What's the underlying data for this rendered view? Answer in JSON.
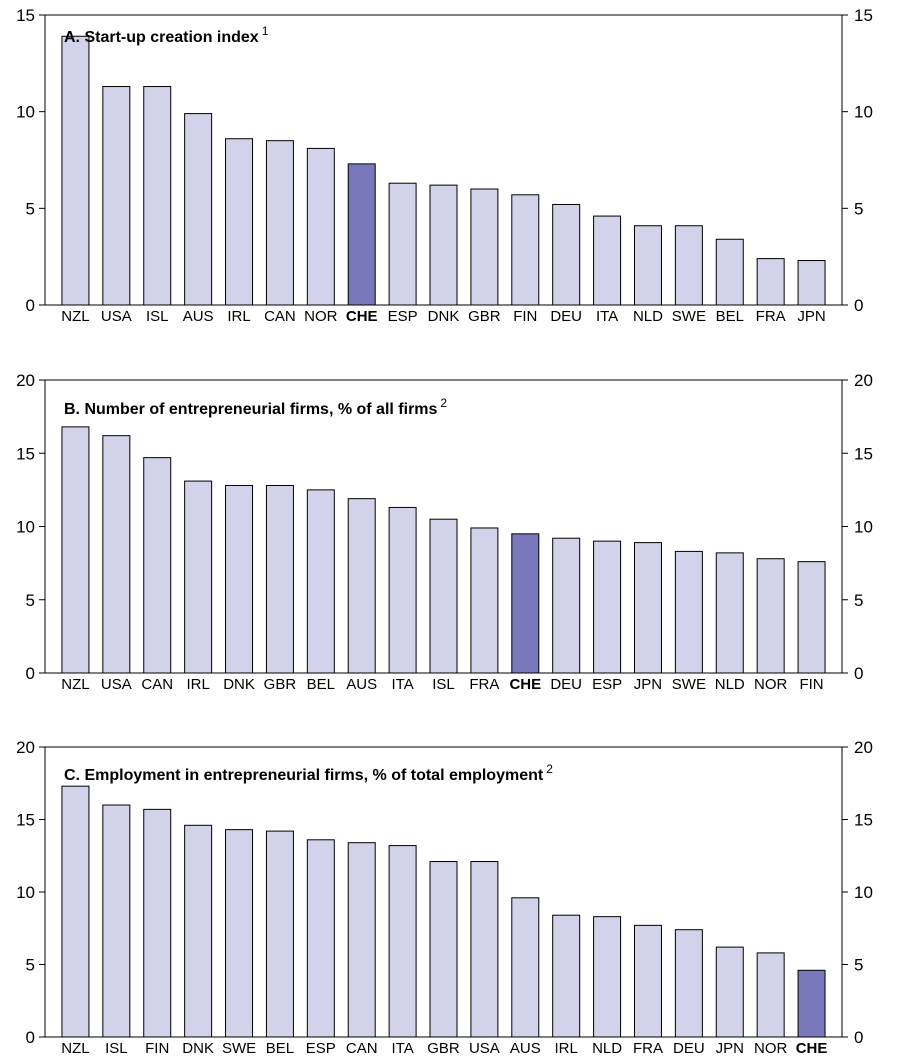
{
  "colors": {
    "bar": "#d2d2ea",
    "highlight": "#7878bb",
    "stroke": "#000000"
  },
  "chart_data": [
    {
      "type": "bar",
      "title": "A. Start-up creation index",
      "title_note": "1",
      "ylim": [
        0,
        15
      ],
      "yticks": [
        0,
        5,
        10,
        15
      ],
      "highlight": "CHE",
      "categories": [
        "NZL",
        "USA",
        "ISL",
        "AUS",
        "IRL",
        "CAN",
        "NOR",
        "CHE",
        "ESP",
        "DNK",
        "GBR",
        "FIN",
        "DEU",
        "ITA",
        "NLD",
        "SWE",
        "BEL",
        "FRA",
        "JPN"
      ],
      "values": [
        13.9,
        11.3,
        11.3,
        9.9,
        8.6,
        8.5,
        8.1,
        7.3,
        6.3,
        6.2,
        6.0,
        5.7,
        5.2,
        4.6,
        4.1,
        4.1,
        3.4,
        2.4,
        2.3
      ]
    },
    {
      "type": "bar",
      "title": "B. Number of entrepreneurial firms, % of all firms",
      "title_note": "2",
      "ylim": [
        0,
        20
      ],
      "yticks": [
        0,
        5,
        10,
        15,
        20
      ],
      "highlight": "CHE",
      "categories": [
        "NZL",
        "USA",
        "CAN",
        "IRL",
        "DNK",
        "GBR",
        "BEL",
        "AUS",
        "ITA",
        "ISL",
        "FRA",
        "CHE",
        "DEU",
        "ESP",
        "JPN",
        "SWE",
        "NLD",
        "NOR",
        "FIN"
      ],
      "values": [
        16.8,
        16.2,
        14.7,
        13.1,
        12.8,
        12.8,
        12.5,
        11.9,
        11.3,
        10.5,
        9.9,
        9.5,
        9.2,
        9.0,
        8.9,
        8.3,
        8.2,
        7.8,
        7.6
      ]
    },
    {
      "type": "bar",
      "title": "C. Employment in entrepreneurial firms, % of total employment",
      "title_note": "2",
      "ylim": [
        0,
        20
      ],
      "yticks": [
        0,
        5,
        10,
        15,
        20
      ],
      "highlight": "CHE",
      "categories": [
        "NZL",
        "ISL",
        "FIN",
        "DNK",
        "SWE",
        "BEL",
        "ESP",
        "CAN",
        "ITA",
        "GBR",
        "USA",
        "AUS",
        "IRL",
        "NLD",
        "FRA",
        "DEU",
        "JPN",
        "NOR",
        "CHE"
      ],
      "values": [
        17.3,
        16.0,
        15.7,
        14.6,
        14.3,
        14.2,
        13.6,
        13.4,
        13.2,
        12.1,
        12.1,
        9.6,
        8.4,
        8.3,
        7.7,
        7.4,
        6.2,
        5.8,
        4.6
      ]
    }
  ]
}
